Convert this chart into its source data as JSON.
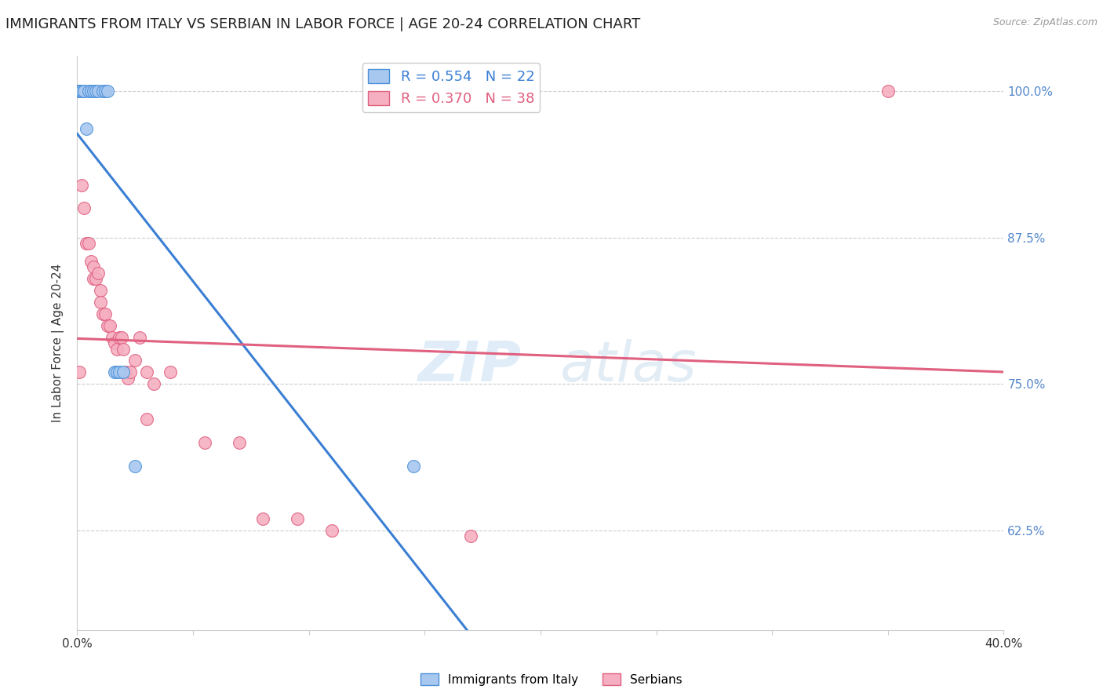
{
  "title": "IMMIGRANTS FROM ITALY VS SERBIAN IN LABOR FORCE | AGE 20-24 CORRELATION CHART",
  "source": "Source: ZipAtlas.com",
  "ylabel": "In Labor Force | Age 20-24",
  "x_min": 0.0,
  "x_max": 0.4,
  "y_min": 0.54,
  "y_max": 1.03,
  "y_ticks": [
    0.625,
    0.75,
    0.875,
    1.0
  ],
  "y_tick_labels_right": [
    "62.5%",
    "75.0%",
    "87.5%",
    "100.0%"
  ],
  "italy_color": "#a8c8f0",
  "serbia_color": "#f5afc0",
  "italy_edge_color": "#4a90d9",
  "serbia_edge_color": "#e06080",
  "italy_R": 0.554,
  "italy_N": 22,
  "serbia_R": 0.37,
  "serbia_N": 38,
  "italy_line_color": "#3a7fd4",
  "serbia_line_color": "#e06080",
  "watermark_zip": "ZIP",
  "watermark_atlas": "atlas",
  "background_color": "#ffffff",
  "grid_color": "#cccccc",
  "title_fontsize": 13,
  "right_tick_color": "#5588cc",
  "italy_scatter_x": [
    0.001,
    0.001,
    0.002,
    0.002,
    0.002,
    0.003,
    0.003,
    0.004,
    0.005,
    0.006,
    0.007,
    0.008,
    0.009,
    0.011,
    0.012,
    0.013,
    0.016,
    0.017,
    0.018,
    0.02,
    0.025,
    0.145
  ],
  "italy_scatter_y": [
    1.0,
    1.0,
    1.0,
    1.0,
    1.0,
    1.0,
    1.0,
    0.968,
    1.0,
    1.0,
    1.0,
    1.0,
    1.0,
    1.0,
    1.0,
    1.0,
    0.76,
    0.76,
    0.76,
    0.76,
    0.68,
    0.68
  ],
  "serbia_scatter_x": [
    0.001,
    0.002,
    0.003,
    0.004,
    0.005,
    0.006,
    0.007,
    0.007,
    0.008,
    0.009,
    0.01,
    0.01,
    0.011,
    0.012,
    0.013,
    0.014,
    0.015,
    0.016,
    0.017,
    0.018,
    0.019,
    0.02,
    0.021,
    0.022,
    0.023,
    0.025,
    0.027,
    0.03,
    0.03,
    0.033,
    0.04,
    0.055,
    0.07,
    0.08,
    0.095,
    0.11,
    0.17,
    0.35
  ],
  "serbia_scatter_y": [
    0.76,
    0.92,
    0.9,
    0.87,
    0.87,
    0.855,
    0.85,
    0.84,
    0.84,
    0.845,
    0.83,
    0.82,
    0.81,
    0.81,
    0.8,
    0.8,
    0.79,
    0.785,
    0.78,
    0.79,
    0.79,
    0.78,
    0.76,
    0.755,
    0.76,
    0.77,
    0.79,
    0.72,
    0.76,
    0.75,
    0.76,
    0.7,
    0.7,
    0.635,
    0.635,
    0.625,
    0.62,
    1.0
  ]
}
